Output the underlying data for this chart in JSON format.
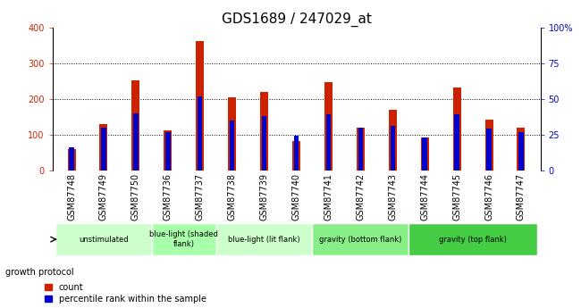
{
  "title": "GDS1689 / 247029_at",
  "samples": [
    "GSM87748",
    "GSM87749",
    "GSM87750",
    "GSM87736",
    "GSM87737",
    "GSM87738",
    "GSM87739",
    "GSM87740",
    "GSM87741",
    "GSM87742",
    "GSM87743",
    "GSM87744",
    "GSM87745",
    "GSM87746",
    "GSM87747"
  ],
  "counts": [
    60,
    130,
    252,
    113,
    362,
    205,
    220,
    83,
    248,
    120,
    170,
    92,
    232,
    142,
    120
  ],
  "percentile": [
    16,
    30,
    40,
    27,
    52,
    35,
    38,
    24,
    39,
    30,
    31,
    23,
    39,
    29,
    27
  ],
  "groups": [
    {
      "label": "unstimulated",
      "start": 0,
      "end": 3,
      "color": "#ccffcc"
    },
    {
      "label": "blue-light (shaded\nflank)",
      "start": 3,
      "end": 5,
      "color": "#aaffaa"
    },
    {
      "label": "blue-light (lit flank)",
      "start": 5,
      "end": 8,
      "color": "#ccffcc"
    },
    {
      "label": "gravity (bottom flank)",
      "start": 8,
      "end": 11,
      "color": "#88ee88"
    },
    {
      "label": "gravity (top flank)",
      "start": 11,
      "end": 15,
      "color": "#44cc44"
    }
  ],
  "ylim_left": [
    0,
    400
  ],
  "ylim_right": [
    0,
    100
  ],
  "yticks_left": [
    0,
    100,
    200,
    300,
    400
  ],
  "yticks_right": [
    0,
    25,
    50,
    75,
    100
  ],
  "bar_color_count": "#cc2200",
  "bar_color_pct": "#0000cc",
  "bar_width": 0.25,
  "bg_color": "#ffffff",
  "xtick_bg": "#c8c8c8",
  "title_fontsize": 11,
  "tick_fontsize": 7,
  "growth_label": "growth protocol"
}
